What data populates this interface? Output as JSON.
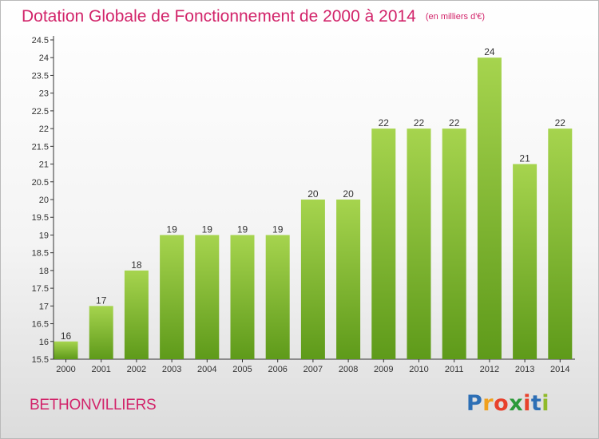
{
  "title": "Dotation Globale de Fonctionnement de 2000 à 2014",
  "unit": "(en milliers d'€)",
  "commune": "BETHONVILLIERS",
  "logo": {
    "letters": [
      "P",
      "r",
      "o",
      "x",
      "i",
      "t",
      "i"
    ],
    "colors": [
      "#2d6fb5",
      "#f0a01e",
      "#e8412c",
      "#2d9a3a",
      "#e8412c",
      "#2d6fb5",
      "#8fba2a"
    ]
  },
  "colors": {
    "bar_light": "#a6d44e",
    "bar_dark": "#5e9a1a",
    "title": "#d2246a"
  },
  "chart_data": {
    "type": "bar",
    "categories": [
      "2000",
      "2001",
      "2002",
      "2003",
      "2004",
      "2005",
      "2006",
      "2007",
      "2008",
      "2009",
      "2010",
      "2011",
      "2012",
      "2013",
      "2014"
    ],
    "values": [
      16,
      17,
      18,
      19,
      19,
      19,
      19,
      20,
      20,
      22,
      22,
      22,
      24,
      21,
      22
    ],
    "value_labels": [
      "16",
      "17",
      "18",
      "19",
      "19",
      "19",
      "19",
      "20",
      "20",
      "22",
      "22",
      "22",
      "24",
      "21",
      "22"
    ],
    "yticks": [
      "15.5",
      "16",
      "16.5",
      "17",
      "17.5",
      "18",
      "18.5",
      "19",
      "19.5",
      "20",
      "20.5",
      "21",
      "21.5",
      "22",
      "22.5",
      "23",
      "23.5",
      "24",
      "24.5"
    ],
    "ylim": [
      15.5,
      24.5
    ],
    "grid": false,
    "title": "Dotation Globale de Fonctionnement de 2000 à 2014",
    "xlabel": "",
    "ylabel": ""
  }
}
